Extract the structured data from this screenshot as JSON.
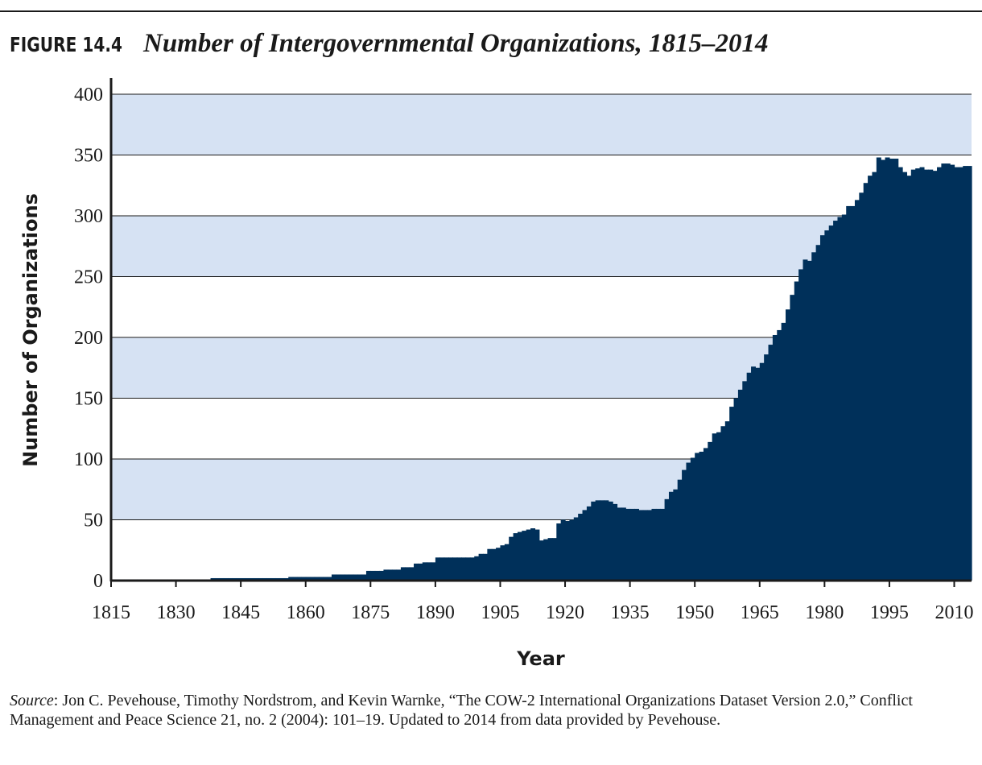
{
  "chart_data": {
    "type": "step-area",
    "figure_label": "FIGURE 14.4",
    "title": "Number of Intergovernmental Organizations, 1815–2014",
    "ylabel": "Number of Organizations",
    "xlabel": "Year",
    "source_label": "Source",
    "source_text": ": Jon C. Pevehouse, Timothy Nordstrom, and Kevin Warnke, “The COW-2 International Organizations Dataset Version 2.0,” Conflict Management and Peace Science 21, no. 2 (2004): 101–19. Updated to 2014 from data provided by Pevehouse.",
    "color": "#00305a",
    "band_color": "#d6e2f3",
    "grid": true,
    "xlim": [
      1815,
      2014
    ],
    "xticks": [
      1815,
      1830,
      1845,
      1860,
      1875,
      1890,
      1905,
      1920,
      1935,
      1950,
      1965,
      1980,
      1995,
      2010
    ],
    "ylim": [
      0,
      400
    ],
    "yticks": [
      0,
      50,
      100,
      150,
      200,
      250,
      300,
      350,
      400
    ],
    "x": [
      1815,
      1816,
      1817,
      1818,
      1819,
      1820,
      1821,
      1822,
      1823,
      1824,
      1825,
      1826,
      1827,
      1828,
      1829,
      1830,
      1831,
      1832,
      1833,
      1834,
      1835,
      1836,
      1837,
      1838,
      1839,
      1840,
      1841,
      1842,
      1843,
      1844,
      1845,
      1846,
      1847,
      1848,
      1849,
      1850,
      1851,
      1852,
      1853,
      1854,
      1855,
      1856,
      1857,
      1858,
      1859,
      1860,
      1861,
      1862,
      1863,
      1864,
      1865,
      1866,
      1867,
      1868,
      1869,
      1870,
      1871,
      1872,
      1873,
      1874,
      1875,
      1876,
      1877,
      1878,
      1879,
      1880,
      1881,
      1882,
      1883,
      1884,
      1885,
      1886,
      1887,
      1888,
      1889,
      1890,
      1891,
      1892,
      1893,
      1894,
      1895,
      1896,
      1897,
      1898,
      1899,
      1900,
      1901,
      1902,
      1903,
      1904,
      1905,
      1906,
      1907,
      1908,
      1909,
      1910,
      1911,
      1912,
      1913,
      1914,
      1915,
      1916,
      1917,
      1918,
      1919,
      1920,
      1921,
      1922,
      1923,
      1924,
      1925,
      1926,
      1927,
      1928,
      1929,
      1930,
      1931,
      1932,
      1933,
      1934,
      1935,
      1936,
      1937,
      1938,
      1939,
      1940,
      1941,
      1942,
      1943,
      1944,
      1945,
      1946,
      1947,
      1948,
      1949,
      1950,
      1951,
      1952,
      1953,
      1954,
      1955,
      1956,
      1957,
      1958,
      1959,
      1960,
      1961,
      1962,
      1963,
      1964,
      1965,
      1966,
      1967,
      1968,
      1969,
      1970,
      1971,
      1972,
      1973,
      1974,
      1975,
      1976,
      1977,
      1978,
      1979,
      1980,
      1981,
      1982,
      1983,
      1984,
      1985,
      1986,
      1987,
      1988,
      1989,
      1990,
      1991,
      1992,
      1993,
      1994,
      1995,
      1996,
      1997,
      1998,
      1999,
      2000,
      2001,
      2002,
      2003,
      2004,
      2005,
      2006,
      2007,
      2008,
      2009,
      2010,
      2011,
      2012,
      2013
    ],
    "values": [
      1,
      1,
      1,
      1,
      1,
      1,
      1,
      1,
      1,
      1,
      1,
      1,
      1,
      1,
      1,
      1,
      1,
      1,
      1,
      1,
      1,
      1,
      1,
      2,
      2,
      2,
      2,
      2,
      2,
      2,
      2,
      2,
      2,
      2,
      2,
      2,
      2,
      2,
      2,
      2,
      2,
      3,
      3,
      3,
      3,
      3,
      3,
      3,
      3,
      3,
      3,
      5,
      5,
      5,
      5,
      5,
      5,
      5,
      5,
      8,
      8,
      8,
      8,
      9,
      9,
      9,
      9,
      11,
      11,
      11,
      14,
      14,
      15,
      15,
      15,
      19,
      19,
      19,
      19,
      19,
      19,
      19,
      19,
      19,
      20,
      22,
      22,
      26,
      26,
      27,
      29,
      30,
      36,
      39,
      40,
      41,
      42,
      43,
      42,
      33,
      34,
      35,
      35,
      47,
      50,
      49,
      50,
      52,
      55,
      58,
      61,
      65,
      66,
      66,
      66,
      65,
      63,
      60,
      60,
      59,
      59,
      59,
      58,
      58,
      58,
      59,
      59,
      59,
      67,
      73,
      75,
      83,
      91,
      97,
      101,
      105,
      106,
      109,
      114,
      121,
      122,
      127,
      131,
      143,
      150,
      157,
      164,
      171,
      176,
      175,
      179,
      186,
      194,
      202,
      206,
      212,
      223,
      235,
      246,
      256,
      264,
      263,
      270,
      276,
      284,
      288,
      292,
      296,
      299,
      301,
      308,
      308,
      313,
      319,
      327,
      333,
      336,
      348,
      346,
      348,
      347,
      347,
      340,
      336,
      333,
      338,
      339,
      340,
      338,
      338,
      337,
      340,
      343,
      343,
      342,
      340,
      340,
      341,
      341
    ]
  }
}
